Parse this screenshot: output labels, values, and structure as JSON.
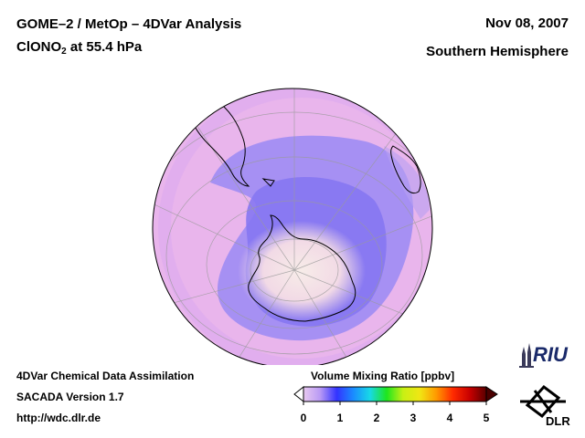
{
  "header": {
    "title_line1": "GOME–2 / MetOp – 4DVar Analysis",
    "species": "ClONO",
    "species_sub": "2",
    "level": " at 55.4 hPa",
    "date": "Nov 08, 2007",
    "hemisphere": "Southern Hemisphere"
  },
  "footer": {
    "line1": "4DVar Chemical Data Assimilation",
    "line2": "SACADA Version 1.7",
    "line3": "http://wdc.dlr.de"
  },
  "colorbar": {
    "title": "Volume Mixing Ratio [ppbv]",
    "ticks": [
      "0",
      "1",
      "2",
      "3",
      "4",
      "5"
    ],
    "colors": [
      "#e8c9f0",
      "#b99af5",
      "#3333ff",
      "#1a8cff",
      "#18d9e6",
      "#1ee61e",
      "#c8f014",
      "#f0e614",
      "#ff9900",
      "#ff2a00",
      "#c80000",
      "#5a0000"
    ]
  },
  "logos": {
    "riu": "RIU",
    "dlr": "DLR"
  },
  "map_colors": {
    "background_field": "#e9b5ec",
    "low_band": "#8d80f3",
    "vortex_core": "#f4e1e4",
    "coastline": "#000000"
  }
}
